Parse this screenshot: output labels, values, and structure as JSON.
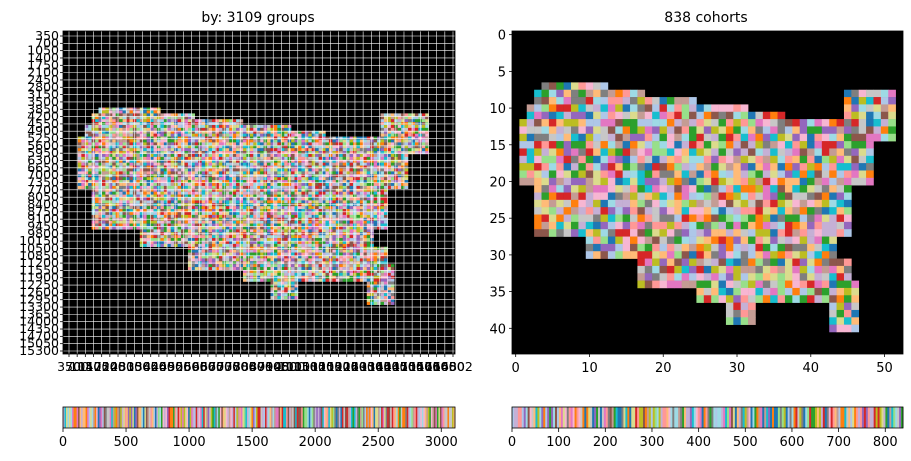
{
  "palette": [
    "#1f77b4",
    "#aec7e8",
    "#ff7f0e",
    "#ffbb78",
    "#2ca02c",
    "#98df8a",
    "#d62728",
    "#ff9896",
    "#9467bd",
    "#c5b0d5",
    "#8c564b",
    "#c49c94",
    "#e377c2",
    "#f7b6d2",
    "#7f7f7f",
    "#c7c7c7",
    "#bcbd22",
    "#dbdb8d",
    "#17becf",
    "#9edae5"
  ],
  "chart_data": [
    {
      "type": "heatmap",
      "title": "by: 3109 groups",
      "groups": 3109,
      "background": "#000000",
      "grid": true,
      "grid_color": "#ffffff",
      "y_ticks": [
        "350",
        "700",
        "1050",
        "1400",
        "1750",
        "2100",
        "2450",
        "2800",
        "3150",
        "3500",
        "3850",
        "4200",
        "4550",
        "4900",
        "5250",
        "5600",
        "5950",
        "6300",
        "6650",
        "7000",
        "7350",
        "7700",
        "8050",
        "8400",
        "8750",
        "9100",
        "9450",
        "9800",
        "10150",
        "10500",
        "10850",
        "11200",
        "11550",
        "11900",
        "12250",
        "12600",
        "12950",
        "13300",
        "13650",
        "14000",
        "14350",
        "14700",
        "15050",
        "15300"
      ],
      "x_ticks": [
        "350",
        "700",
        "1050",
        "1400",
        "1750",
        "2100",
        "2450",
        "2800",
        "3150",
        "3500",
        "3850",
        "4200",
        "4550",
        "4900",
        "5250",
        "5600",
        "5950",
        "6300",
        "6650",
        "7000",
        "7350",
        "7700",
        "8050",
        "8400",
        "8750",
        "9100",
        "9450",
        "9800",
        "10150",
        "10500",
        "10850",
        "11200",
        "11550",
        "11900",
        "12250",
        "12600",
        "12950",
        "13300",
        "13650",
        "14000",
        "14350",
        "14700",
        "15050",
        "15400",
        "15750",
        "16100",
        "16450",
        "16802"
      ]
    },
    {
      "type": "heatmap",
      "title": "838 cohorts",
      "cohorts": 838,
      "background": "#000000",
      "grid": false,
      "xlim": [
        -0.5,
        52.5
      ],
      "ylim": [
        43.5,
        -0.5
      ],
      "x_ticks": [
        0,
        10,
        20,
        30,
        40,
        50
      ],
      "y_ticks": [
        0,
        5,
        10,
        15,
        20,
        25,
        30,
        35,
        40
      ]
    },
    {
      "type": "bar",
      "xlim": [
        0,
        3109
      ],
      "x_ticks": [
        0,
        500,
        1000,
        1500,
        2000,
        2500,
        3000
      ]
    },
    {
      "type": "bar",
      "xlim": [
        0,
        838
      ],
      "x_ticks": [
        0,
        100,
        200,
        300,
        400,
        500,
        600,
        700,
        800
      ]
    }
  ]
}
